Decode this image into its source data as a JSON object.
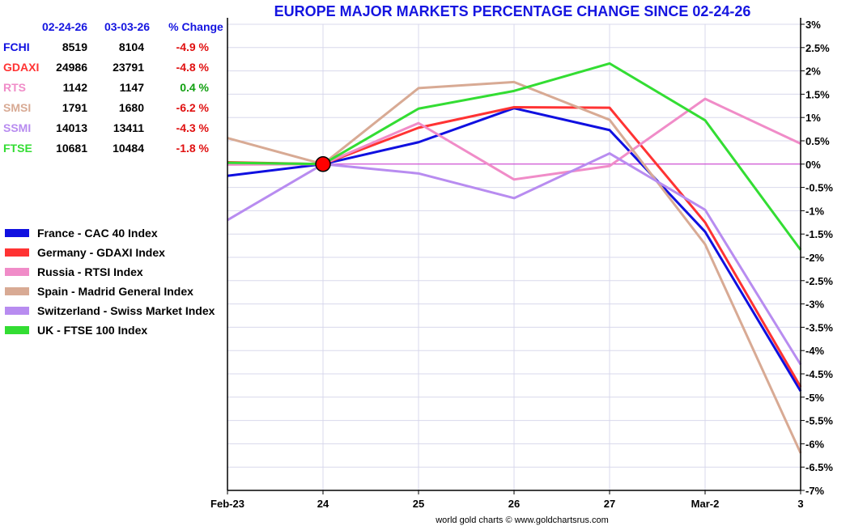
{
  "title": "EUROPE MAJOR MARKETS PERCENTAGE CHANGE SINCE 02-24-26",
  "credit": "world gold charts © www.goldchartsrus.com",
  "table": {
    "headers": [
      "02-24-26",
      "03-03-26",
      "% Change"
    ],
    "rows": [
      {
        "symbol": "FCHI",
        "start": "8519",
        "end": "8104",
        "change": "-4.9 %",
        "color": "#1010e0",
        "change_color": "#e01010"
      },
      {
        "symbol": "GDAXI",
        "start": "24986",
        "end": "23791",
        "change": "-4.8 %",
        "color": "#ff3333",
        "change_color": "#e01010"
      },
      {
        "symbol": "RTS",
        "start": "1142",
        "end": "1147",
        "change": "0.4 %",
        "color": "#f08cc8",
        "change_color": "#10a010"
      },
      {
        "symbol": "SMSI",
        "start": "1791",
        "end": "1680",
        "change": "-6.2 %",
        "color": "#d8aa94",
        "change_color": "#e01010"
      },
      {
        "symbol": "SSMI",
        "start": "14013",
        "end": "13411",
        "change": "-4.3 %",
        "color": "#b88cf0",
        "change_color": "#e01010"
      },
      {
        "symbol": "FTSE",
        "start": "10681",
        "end": "10484",
        "change": "-1.8 %",
        "color": "#33dd33",
        "change_color": "#e01010"
      }
    ]
  },
  "chart_data": {
    "type": "line",
    "title": "EUROPE MAJOR MARKETS PERCENTAGE CHANGE SINCE 02-24-26",
    "x": [
      "Feb-23",
      "24",
      "25",
      "26",
      "27",
      "Mar-2",
      "3"
    ],
    "ylim": [
      -7,
      3
    ],
    "y_ticks": [
      "3%",
      "2.5%",
      "2%",
      "1.5%",
      "1%",
      "0.5%",
      "0%",
      "-0.5%",
      "-1%",
      "-1.5%",
      "-2%",
      "-2.5%",
      "-3%",
      "-3.5%",
      "-4%",
      "-4.5%",
      "-5%",
      "-5.5%",
      "-6%",
      "-6.5%",
      "-7%"
    ],
    "y_axis_side": "right",
    "grid": true,
    "legend_placement": "left",
    "baseline_color": "#cc33cc",
    "marker": {
      "x": "24",
      "y": 0,
      "color": "#ff0000"
    },
    "series": [
      {
        "name": "France - CAC 40 Index",
        "color": "#1010e0",
        "values": [
          -0.25,
          0,
          0.47,
          1.2,
          0.73,
          -1.45,
          -4.87
        ]
      },
      {
        "name": "Germany - GDAXI Index",
        "color": "#ff3333",
        "values": [
          0.04,
          0,
          0.78,
          1.22,
          1.21,
          -1.25,
          -4.78
        ]
      },
      {
        "name": "Russia - RTSI Index",
        "color": "#f08cc8",
        "values": [
          -0.01,
          0,
          0.88,
          -0.33,
          -0.04,
          1.4,
          0.44
        ]
      },
      {
        "name": "Spain - Madrid General Index",
        "color": "#d8aa94",
        "values": [
          0.56,
          0,
          1.63,
          1.76,
          0.95,
          -1.72,
          -6.2
        ]
      },
      {
        "name": "Switzerland - Swiss Market Index",
        "color": "#b88cf0",
        "values": [
          -1.2,
          0,
          -0.2,
          -0.73,
          0.23,
          -0.98,
          -4.3
        ]
      },
      {
        "name": "UK - FTSE 100 Index",
        "color": "#33dd33",
        "values": [
          0.03,
          0,
          1.19,
          1.57,
          2.16,
          0.94,
          -1.84
        ]
      }
    ]
  }
}
